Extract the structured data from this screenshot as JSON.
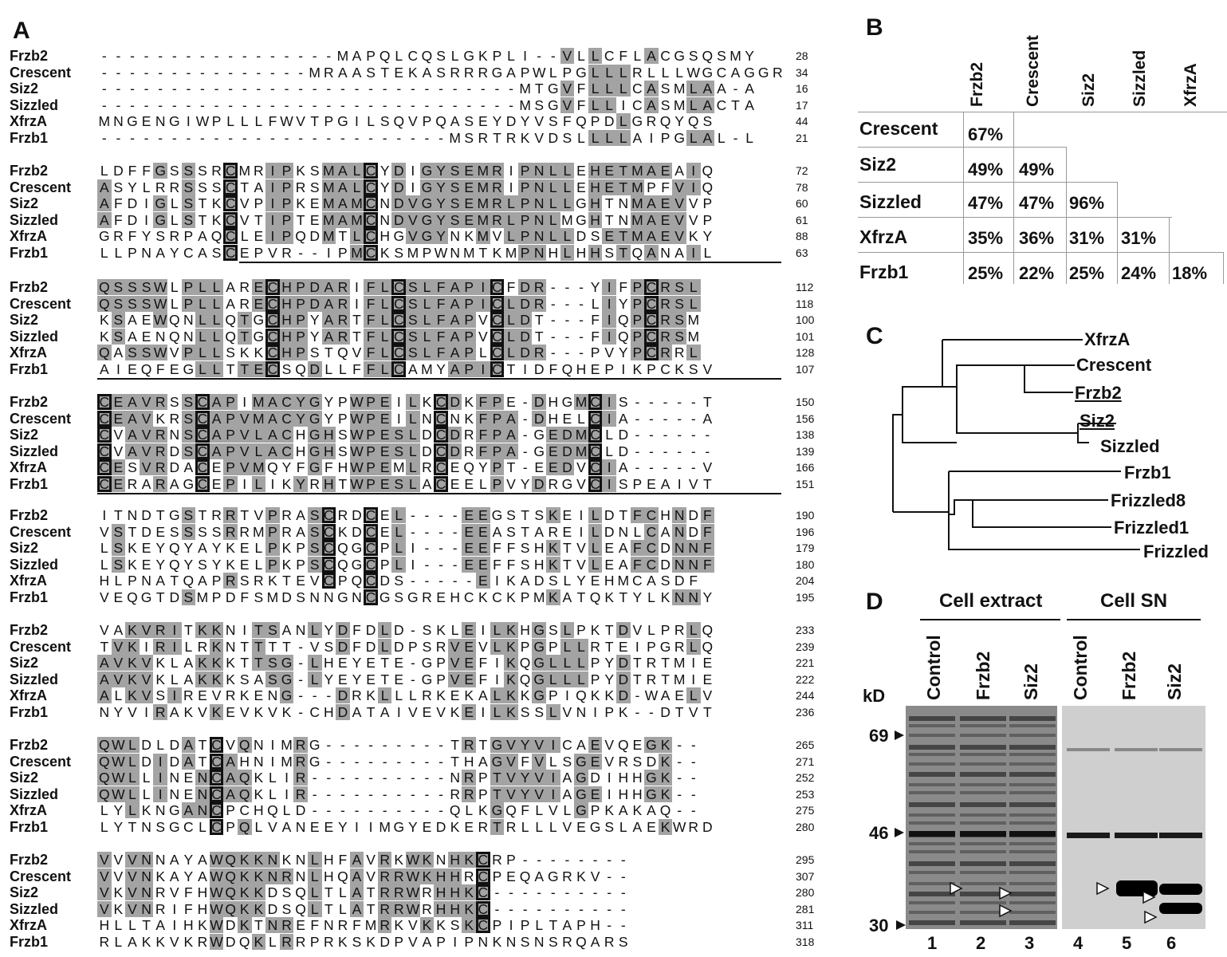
{
  "panelA": {
    "letter": "A",
    "blocks": [
      {
        "rows": [
          {
            "name": "Frzb2",
            "seq": "-----------------MAPQLCQSLGKPLI--VLLCFLACGSQSMY",
            "hl": [
              34,
              35,
              36,
              38,
              39,
              41
            ],
            "num": "28"
          },
          {
            "name": "Crescent",
            "seq": "---------------MRAASTEKASRRRGAPWLPGLLLRLLLWGCAGGR",
            "hl": [],
            "num": "34"
          },
          {
            "name": "Siz2",
            "seq": "------------------------------MTGVFLLLCASMLAA-A",
            "hl": [],
            "num": "16"
          },
          {
            "name": "Sizzled",
            "seq": "------------------------------MSGVFLLICASMLACTA",
            "hl": [],
            "num": "17"
          },
          {
            "name": "XfrzA",
            "seq": "MNGENGIWPLLLFWVTPGILSQVPQASEYDYVSFQPDLGRQYQS",
            "hl": [],
            "num": "44"
          },
          {
            "name": "Frzb1",
            "seq": "-------------------------MSRTRKVDSLLLLAIPGLAL-L",
            "hl": [],
            "num": "21"
          }
        ]
      },
      {
        "rows": [
          {
            "name": "Frzb2",
            "seq": "LDFFGSSSRCMRIPKSMALCYDIGYSEMRIPNLLEHETMAEAIQ",
            "num": "72"
          },
          {
            "name": "Crescent",
            "seq": "ASYLRRSSSCTAIPRSMALCYDIGYSEMRIPNLLEHETMPFVIQ",
            "num": "78"
          },
          {
            "name": "Siz2",
            "seq": "AFDIGLSTKCVPIPKEMAMCNDVGYSEMRLPNLLGHTNMAEVVP",
            "num": "60"
          },
          {
            "name": "Sizzled",
            "seq": "AFDIGLSTKCVTIPTEMAMCNDVGYSEMRLPNLMGHTNMAEVVP",
            "num": "61"
          },
          {
            "name": "XfrzA",
            "seq": "GRFYSRPAQCLEIPQDMTLCHGVGYNKMVLPNLLDSETMAEVKY",
            "num": "88"
          },
          {
            "name": "Frzb1",
            "seq": "LLPNAYCASCEPVR--IPMCKSMPWNMTKMPNHLHHSTQANAIL",
            "num": "63"
          }
        ]
      },
      {
        "rows": [
          {
            "name": "Frzb2",
            "seq": "QSSSWLPLLARECHPDARIFLCSLFAPICFDR---YIFPCRSL",
            "num": "112"
          },
          {
            "name": "Crescent",
            "seq": "QSSSWLPLLARECHPDARIFLCSLFAPICLDR---LIYPCRSL",
            "num": "118"
          },
          {
            "name": "Siz2",
            "seq": "KSAEWQNLLQTGCHPYARTFLCSLFAPVCLDT---FIQPCRSM",
            "num": "100"
          },
          {
            "name": "Sizzled",
            "seq": "KSAENQNLLQTGCHPYARTFLCSLFAPVCLDT---FIQPCRSM",
            "num": "101"
          },
          {
            "name": "XfrzA",
            "seq": "QASSWVPLLSKKCHPSTQVFLCSLFAPLCLDR---PVYPCRRL",
            "num": "128"
          },
          {
            "name": "Frzb1",
            "seq": "AIEQFEGLLTTECSQDLLFFLCAMYAPICTIDFQHEPIKPCKSV",
            "num": "107"
          }
        ]
      },
      {
        "rows": [
          {
            "name": "Frzb2",
            "seq": "CEAVRSSCAPIMACYGYPWPEILKCDKFPE-DHGMCIS-----T",
            "num": "150"
          },
          {
            "name": "Crescent",
            "seq": "CEAVKRSCAPVMACYGYPWPEILNCNKFPA-DHELCIA-----A",
            "num": "156"
          },
          {
            "name": "Siz2",
            "seq": "CVAVRNSCAPVLACHGHSWPESLDCDRFPA-GEDMCLD------",
            "num": "138"
          },
          {
            "name": "Sizzled",
            "seq": "CVAVRDSCAPVLACHGHSWPESLDCDRFPA-GEDMCLD------",
            "num": "139"
          },
          {
            "name": "XfrzA",
            "seq": "CESVRDACEPVMQYFGFHWPEMLRCEQYPT-EEDVCIA-----V",
            "num": "166"
          },
          {
            "name": "Frzb1",
            "seq": "CERARAGCEPILIKYRHTWPESLACEELPVYDRGVCISPEAIVT",
            "num": "151"
          }
        ]
      },
      {
        "rows": [
          {
            "name": "Frzb2",
            "seq": "ITNDTGSTRRTVPRASCRDCEL----EEGSTSKEILDTFCHNDF",
            "num": "190"
          },
          {
            "name": "Crescent",
            "seq": "VSTDESSSSRRMPRASCKDCEL----EEASTAREILDNLCANDF",
            "num": "196"
          },
          {
            "name": "Siz2",
            "seq": "LSKEYQYAYKELPKPSCQGCPLI---EEFFSHKTVLEAFCDNNF",
            "num": "179"
          },
          {
            "name": "Sizzled",
            "seq": "LSKEYQYSYKELPKPSCQGCPLI---EEFFSHKTVLEAFCDNNF",
            "num": "180"
          },
          {
            "name": "XfrzA",
            "seq": "HLPNATQAPRSRKTEVCPQCDS-----EIKADSLYEHMCASDF",
            "num": "204"
          },
          {
            "name": "Frzb1",
            "seq": "VEQGTDSMPDFSMDSNNGNCGSGREHCKCKPMKATQKTYLKNNY",
            "num": "195"
          }
        ]
      },
      {
        "rows": [
          {
            "name": "Frzb2",
            "seq": "VAKVRITKKNITSANLYDFDLD-SKLEILKHGSLPKTDVLPRLQ",
            "num": "233"
          },
          {
            "name": "Crescent",
            "seq": "TVKIRILRKNTTTT-VSDFDLDPSRVEVLKPGPLLRTEIPGRLQ",
            "num": "239"
          },
          {
            "name": "Siz2",
            "seq": "AVKVKLAKKKTTSG-LHEYETE-GPVEFIKQGLLLPYDTRTMIE",
            "num": "221"
          },
          {
            "name": "Sizzled",
            "seq": "AVKVKLAKKKSASG-LYEYETE-GPVEFIKQGLLLPYDTRTMIE",
            "num": "222"
          },
          {
            "name": "XfrzA",
            "seq": "ALKVSIREVRKENG---DRKLLLRKEKALKKGPIQKKD-WAELV",
            "num": "244"
          },
          {
            "name": "Frzb1",
            "seq": "NYVIRAKVKEVKVK-CHDATAIVEVKEILKSSLVNIPK--DTVT",
            "num": "236"
          }
        ]
      },
      {
        "rows": [
          {
            "name": "Frzb2",
            "seq": "QWLDLDATCVQNIMRG---------TRTGVYVICAEVQEGK--",
            "num": "265"
          },
          {
            "name": "Crescent",
            "seq": "QWLDIDATCAHNIMRG---------THAGVFVLSGEVRSDK--",
            "num": "271"
          },
          {
            "name": "Siz2",
            "seq": "QWLLINENCAQKLIR----------NRPTVYVIAGDIHHGK--",
            "num": "252"
          },
          {
            "name": "Sizzled",
            "seq": "QWLLINENCAQKLIR----------RRPTVYVIAGEIHHGK--",
            "num": "253"
          },
          {
            "name": "XfrzA",
            "seq": "LYLKNGANCPCHQLD----------QLKGQFLVLGPKAKAQ--",
            "num": "275"
          },
          {
            "name": "Frzb1",
            "seq": "LYTNSGCLCPQLVANEEYIIMGYEDKERTRLLLVEGSLAEKWRD",
            "num": "280"
          }
        ]
      },
      {
        "rows": [
          {
            "name": "Frzb2",
            "seq": "VVVNNAYAWQKKNKNLHFAVRKWKNHKCRP--------",
            "num": "295"
          },
          {
            "name": "Crescent",
            "seq": "VVVNKAYAWQKKNRNLHQAVRRWKHHRCPEQAGRKV--",
            "num": "307"
          },
          {
            "name": "Siz2",
            "seq": "VKVNRVFHWQKKDSQLTLATRRWRHHKC----------",
            "num": "280"
          },
          {
            "name": "Sizzled",
            "seq": "VKVNRIFHWQKKDSQLTLATRRWRHHKC----------",
            "num": "281"
          },
          {
            "name": "XfrzA",
            "seq": "HLLTAIHKWDKTNREFNRFMRKVKKSKCPIPLTAPH--",
            "num": "311"
          },
          {
            "name": "Frzb1",
            "seq": "RLAKKVKRWDQKLRRPRKSKDPVAPIPNKNSNSRQARS",
            "num": "318"
          }
        ]
      }
    ]
  },
  "panelB": {
    "letter": "B",
    "columns": [
      "Frzb2",
      "Crescent",
      "Siz2",
      "Sizzled",
      "XfrzA"
    ],
    "rows": [
      {
        "name": "Crescent",
        "values": [
          "67%"
        ]
      },
      {
        "name": "Siz2",
        "values": [
          "49%",
          "49%"
        ]
      },
      {
        "name": "Sizzled",
        "values": [
          "47%",
          "47%",
          "96%"
        ]
      },
      {
        "name": "XfrzA",
        "values": [
          "35%",
          "36%",
          "31%",
          "31%"
        ]
      },
      {
        "name": "Frzb1",
        "values": [
          "25%",
          "22%",
          "25%",
          "24%",
          "18%"
        ]
      }
    ]
  },
  "panelC": {
    "letter": "C",
    "leaves": [
      "XfrzA",
      "Crescent",
      "Frzb2",
      "Siz2",
      "Sizzled",
      "Frzb1",
      "Frizzled8",
      "Frizzled1",
      "Frizzled"
    ]
  },
  "panelD": {
    "letter": "D",
    "group1": "Cell extract",
    "group2": "Cell SN",
    "kd": "kD",
    "lanes": [
      "Control",
      "Frzb2",
      "Siz2",
      "Control",
      "Frzb2",
      "Siz2"
    ],
    "lane_numbers": [
      "1",
      "2",
      "3",
      "4",
      "5",
      "6"
    ],
    "markers": [
      "69",
      "46",
      "30"
    ]
  }
}
